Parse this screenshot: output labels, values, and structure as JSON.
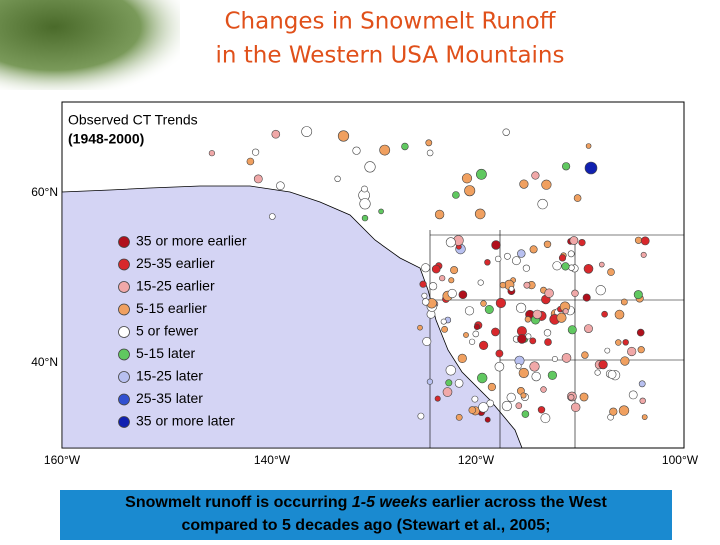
{
  "title": [
    "Changes in Snowmelt Runoff",
    "in the Western USA Mountains"
  ],
  "map": {
    "title": "Observed CT Trends",
    "period": "(1948-2000)",
    "latitude_labels": [
      "60°N",
      "40°N"
    ],
    "longitude_labels": [
      "160°W",
      "140°W",
      "120°W",
      "100°W"
    ],
    "legend": [
      {
        "label": "35 or more earlier",
        "color": "#b0101c"
      },
      {
        "label": "25-35 earlier",
        "color": "#d8282c"
      },
      {
        "label": "15-25 earlier",
        "color": "#f0a8a8"
      },
      {
        "label": "5-15 earlier",
        "color": "#f0a060"
      },
      {
        "label": "5 or fewer",
        "color": "#ffffff"
      },
      {
        "label": "5-15 later",
        "color": "#60c860"
      },
      {
        "label": "15-25 later",
        "color": "#b8c0f0"
      },
      {
        "label": "25-35 later",
        "color": "#3050d0"
      },
      {
        "label": "35 or more later",
        "color": "#1020b0"
      }
    ]
  },
  "caption": {
    "line1": [
      "Snowmelt runoff is occurring",
      "1-5 weeks",
      "earlier across the West"
    ],
    "line2": "compared to 5 decades ago (Stewart et al., 2005;"
  }
}
